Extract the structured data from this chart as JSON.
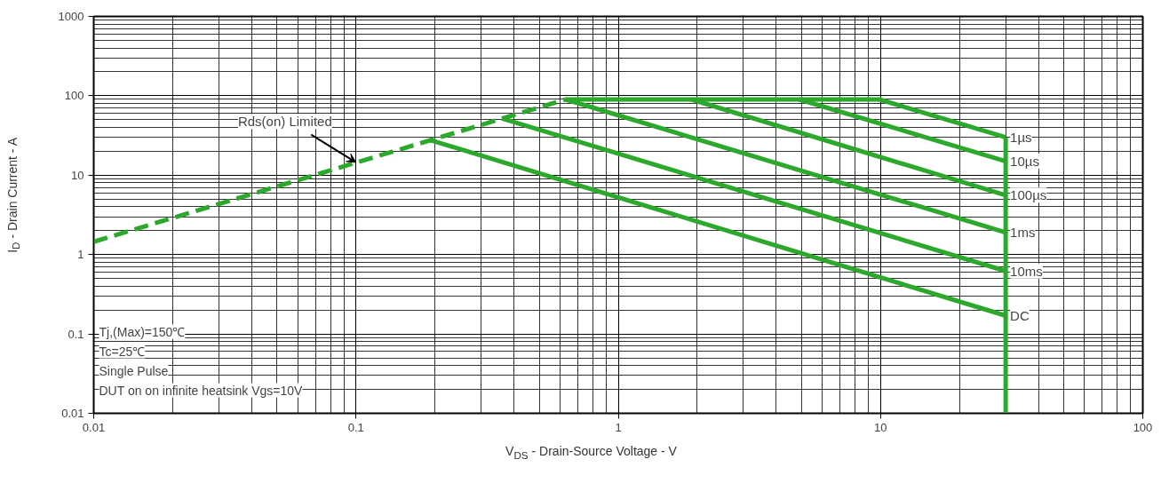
{
  "chart_data": {
    "type": "line",
    "xlabel": "V$_{DS}$ - Drain-Source Voltage - V",
    "ylabel": "I$_{D}$ - Drain Current - A",
    "log": "xy",
    "grid": true,
    "marker": "none",
    "line_style": "solid",
    "xlim": [
      0.01,
      100
    ],
    "xticks": [
      0.01,
      0.1,
      1,
      10,
      100
    ],
    "ylim": [
      0.01,
      1000
    ],
    "yticks": [
      0.01,
      0.1,
      1,
      10,
      100,
      1000
    ],
    "series": [
      {
        "color": "#2ca82c",
        "line_style": "dashed",
        "x": [
          0.01,
          0.63
        ],
        "values": [
          1.45,
          90
        ]
      },
      {
        "name": "1µs",
        "color": "#2ca82c",
        "x": [
          0.63,
          9.9,
          30
        ],
        "values": [
          90,
          90,
          30
        ]
      },
      {
        "name": "10µs",
        "color": "#2ca82c",
        "x": [
          4.9,
          30
        ],
        "values": [
          90,
          15
        ]
      },
      {
        "name": "100µs",
        "color": "#2ca82c",
        "x": [
          1.9,
          30
        ],
        "values": [
          90,
          5.6
        ]
      },
      {
        "name": "1ms",
        "color": "#2ca82c",
        "x": [
          0.63,
          30
        ],
        "values": [
          90,
          1.9
        ]
      },
      {
        "name": "10ms",
        "color": "#2ca82c",
        "x": [
          0.36,
          30
        ],
        "values": [
          52,
          0.62
        ]
      },
      {
        "name": "DC",
        "color": "#2ca82c",
        "x": [
          0.19,
          30
        ],
        "values": [
          28,
          0.17
        ]
      },
      {
        "color": "#2ca82c",
        "x": [
          30,
          30
        ],
        "values": [
          30,
          0.01
        ]
      }
    ],
    "annotations": [
      {
        "text": "Rds(on) Limited",
        "x": 0.1,
        "y": 14.5
      },
      "Tj,(Max)=150℃",
      "Tc=25℃",
      "Single Pulse",
      "DUT on on infinite heatsink Vgs=10V"
    ]
  }
}
